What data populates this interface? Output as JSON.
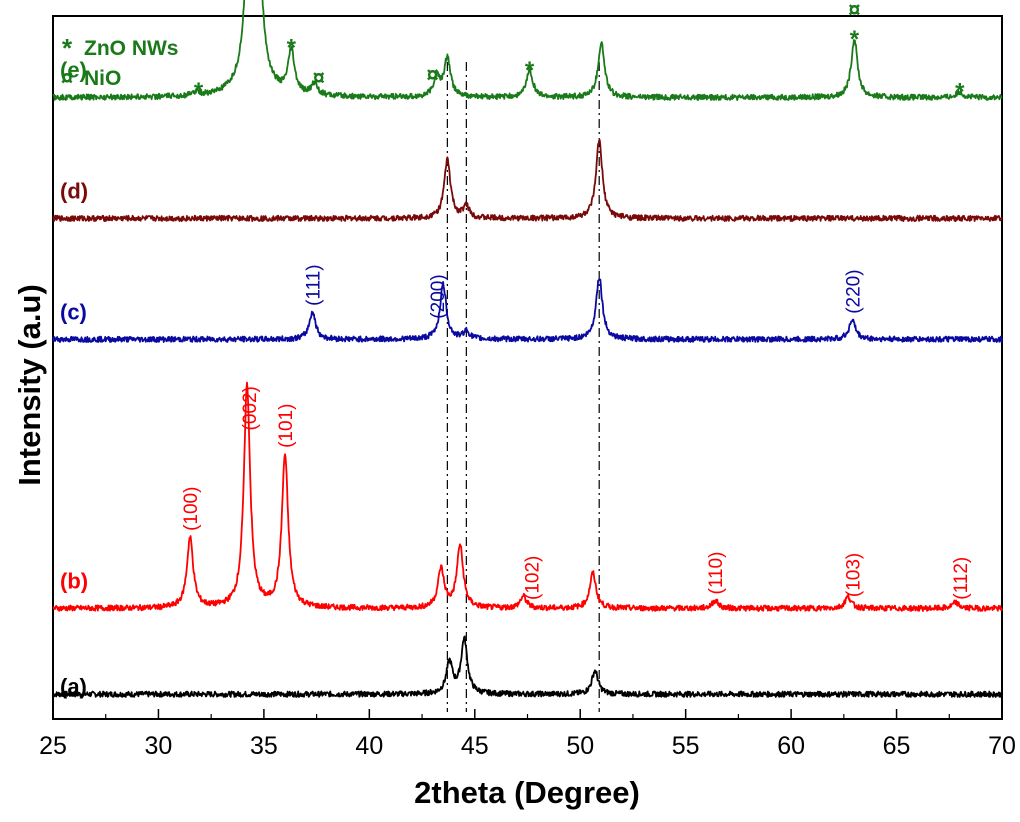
{
  "chart_data": {
    "type": "line",
    "xlabel": "2theta (Degree)",
    "ylabel": "Intensity (a.u)",
    "xlim": [
      25,
      70
    ],
    "x_ticks": [
      "25",
      "30",
      "35",
      "40",
      "45",
      "50",
      "55",
      "60",
      "65",
      "70"
    ],
    "y_ticks_shown": false,
    "grid": false,
    "legend": {
      "placement": "top-left",
      "entries": [
        {
          "symbol": "*",
          "label": "ZnO NWs",
          "color": "#1a7a1a"
        },
        {
          "symbol": "¤",
          "label": "NiO",
          "color": "#1a7a1a"
        }
      ]
    },
    "reference_lines_x": [
      43.7,
      44.6,
      50.9
    ],
    "series": [
      {
        "name": "(a)",
        "color": "#000000",
        "baseline": 2,
        "peaks": [
          [
            43.8,
            8
          ],
          [
            44.5,
            14
          ],
          [
            50.7,
            6
          ]
        ]
      },
      {
        "name": "(b)",
        "color": "#ff0000",
        "baseline": 24,
        "peaks": [
          [
            31.5,
            18
          ],
          [
            34.2,
            57
          ],
          [
            36.0,
            39
          ],
          [
            43.4,
            10
          ],
          [
            44.3,
            16
          ],
          [
            47.3,
            3
          ],
          [
            50.6,
            9
          ],
          [
            56.4,
            2
          ],
          [
            62.7,
            3
          ],
          [
            67.8,
            1.5
          ]
        ],
        "annotations": [
          {
            "x": 31.5,
            "text": "(100)"
          },
          {
            "x": 34.3,
            "text": "(002)"
          },
          {
            "x": 36.0,
            "text": "(101)"
          },
          {
            "x": 47.7,
            "text": "(102)"
          },
          {
            "x": 56.4,
            "text": "(110)"
          },
          {
            "x": 62.9,
            "text": "(103)"
          },
          {
            "x": 68.0,
            "text": "(112)"
          }
        ]
      },
      {
        "name": "(c)",
        "color": "#0a0aa0",
        "baseline": 93,
        "peaks": [
          [
            37.3,
            7
          ],
          [
            43.5,
            14
          ],
          [
            44.6,
            2
          ],
          [
            50.9,
            16
          ],
          [
            62.9,
            5
          ]
        ],
        "annotations": [
          {
            "x": 37.3,
            "text": "(111)"
          },
          {
            "x": 43.2,
            "text": "(200)"
          },
          {
            "x": 62.9,
            "text": "(220)"
          }
        ]
      },
      {
        "name": "(d)",
        "color": "#7a0a0a",
        "baseline": 124,
        "peaks": [
          [
            43.7,
            15
          ],
          [
            44.6,
            3
          ],
          [
            50.9,
            20
          ]
        ]
      },
      {
        "name": "(e)",
        "color": "#1a7a1a",
        "baseline": 155,
        "peaks": [
          [
            31.8,
            1
          ],
          [
            34.5,
            171
          ],
          [
            36.3,
            11
          ],
          [
            37.4,
            3
          ],
          [
            43.2,
            5
          ],
          [
            43.7,
            10
          ],
          [
            47.6,
            7
          ],
          [
            51.0,
            14
          ],
          [
            63.0,
            15
          ],
          [
            68.0,
            1.5
          ]
        ],
        "annotations": [
          {
            "x": 31.9,
            "text": "*"
          },
          {
            "x": 34.5,
            "text": "*"
          },
          {
            "x": 36.3,
            "text": "*"
          },
          {
            "x": 37.6,
            "text": "¤"
          },
          {
            "x": 43.0,
            "text": "¤"
          },
          {
            "x": 47.6,
            "text": "*"
          },
          {
            "x": 63.0,
            "text": "*"
          },
          {
            "x": 63.0,
            "text": "¤"
          },
          {
            "x": 68.0,
            "text": "*"
          }
        ]
      }
    ]
  }
}
